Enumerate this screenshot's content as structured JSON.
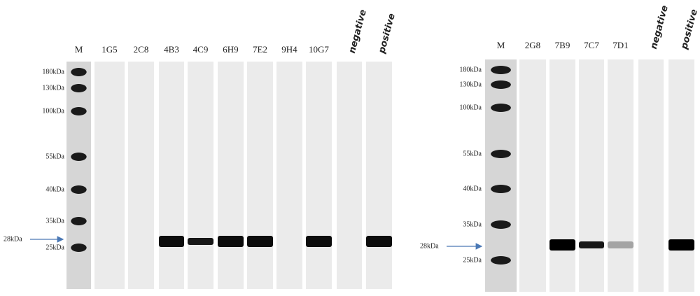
{
  "panels": [
    {
      "lanes": [
        "M",
        "1G5",
        "2C8",
        "4B3",
        "4C9",
        "6H9",
        "7E2",
        "9H4",
        "10G7",
        "negative",
        "positive"
      ],
      "markers": [
        "180kDa",
        "130kDa",
        "100kDa",
        "55kDa",
        "40kDa",
        "35kDa",
        "25kDa"
      ],
      "arrow_label": "28kDa"
    },
    {
      "lanes": [
        "M",
        "2G8",
        "7B9",
        "7C7",
        "7D1",
        "negative",
        "positive"
      ],
      "markers": [
        "180kDa",
        "130kDa",
        "100kDa",
        "55kDa",
        "40kDa",
        "35kDa",
        "25kDa"
      ],
      "arrow_label": "28kDa"
    }
  ]
}
